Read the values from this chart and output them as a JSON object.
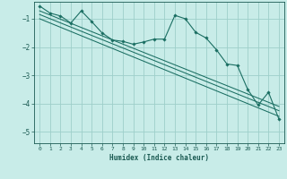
{
  "xlabel": "Humidex (Indice chaleur)",
  "background_color": "#c8ece8",
  "grid_color": "#9ecfca",
  "line_color": "#1a6e62",
  "xlim": [
    -0.5,
    23.5
  ],
  "ylim": [
    -5.4,
    -0.4
  ],
  "yticks": [
    -5,
    -4,
    -3,
    -2,
    -1
  ],
  "xticks": [
    0,
    1,
    2,
    3,
    4,
    5,
    6,
    7,
    8,
    9,
    10,
    11,
    12,
    13,
    14,
    15,
    16,
    17,
    18,
    19,
    20,
    21,
    22,
    23
  ],
  "series": [
    [
      0,
      -0.55
    ],
    [
      1,
      -0.8
    ],
    [
      2,
      -0.9
    ],
    [
      3,
      -1.15
    ],
    [
      4,
      -0.72
    ],
    [
      5,
      -1.1
    ],
    [
      6,
      -1.5
    ],
    [
      7,
      -1.75
    ],
    [
      8,
      -1.8
    ],
    [
      9,
      -1.9
    ],
    [
      10,
      -1.82
    ],
    [
      11,
      -1.72
    ],
    [
      12,
      -1.72
    ],
    [
      13,
      -0.88
    ],
    [
      14,
      -1.0
    ],
    [
      15,
      -1.48
    ],
    [
      16,
      -1.68
    ],
    [
      17,
      -2.1
    ],
    [
      18,
      -2.6
    ],
    [
      19,
      -2.65
    ],
    [
      20,
      -3.5
    ],
    [
      21,
      -4.05
    ],
    [
      22,
      -3.6
    ],
    [
      23,
      -4.55
    ]
  ],
  "line1": [
    [
      0,
      -0.72
    ],
    [
      23,
      -4.1
    ]
  ],
  "line2": [
    [
      0,
      -0.85
    ],
    [
      23,
      -4.25
    ]
  ],
  "line3": [
    [
      0,
      -1.0
    ],
    [
      23,
      -4.45
    ]
  ]
}
